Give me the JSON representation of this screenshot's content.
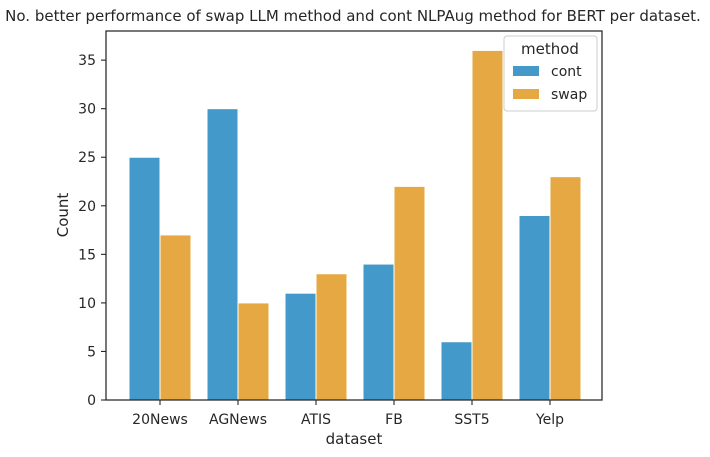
{
  "chart_data": {
    "type": "bar",
    "title": "No. better performance of swap LLM method and cont NLPAug method for BERT per dataset.",
    "xlabel": "dataset",
    "ylabel": "Count",
    "categories": [
      "20News",
      "AGNews",
      "ATIS",
      "FB",
      "SST5",
      "Yelp"
    ],
    "series": [
      {
        "name": "cont",
        "values": [
          25,
          30,
          11,
          14,
          6,
          19
        ],
        "color": "#4399c9"
      },
      {
        "name": "swap",
        "values": [
          17,
          10,
          13,
          22,
          36,
          23
        ],
        "color": "#e5a843"
      }
    ],
    "ylim": [
      0,
      38
    ],
    "yticks": [
      0,
      5,
      10,
      15,
      20,
      25,
      30,
      35
    ],
    "legend": {
      "title": "method",
      "placement": "top-right"
    },
    "grid": false
  }
}
